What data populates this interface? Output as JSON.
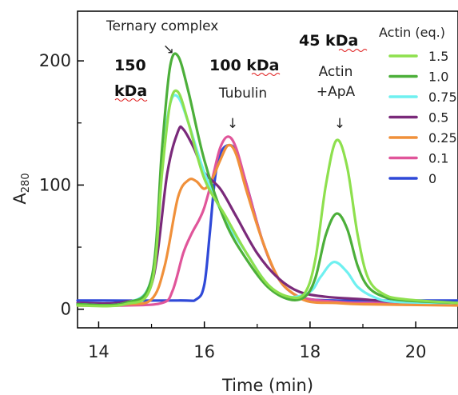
{
  "chart_data": {
    "type": "line",
    "xlabel": "Time (min)",
    "ylabel": "A",
    "ylabel_sub": "280",
    "xlim": [
      13.6,
      20.8
    ],
    "ylim": [
      -15,
      240
    ],
    "xticks": [
      14,
      16,
      18,
      20
    ],
    "yticks": [
      0,
      100,
      200
    ],
    "legend": {
      "title": "Actin (eq.)",
      "placement": "top-right"
    },
    "annotations": {
      "ternary": "Ternary complex",
      "mw150a": "150",
      "mw150b": "kDa",
      "mw100": "100 kDa",
      "tubulin": "Tubulin",
      "mw45": "45 kDa",
      "actin1": "Actin",
      "actin2": "+ApA",
      "arrow": "↓"
    },
    "series": [
      {
        "name": "1.5",
        "color": "#8ee04e",
        "x": [
          13.6,
          14.5,
          15.0,
          15.2,
          15.35,
          15.5,
          15.7,
          16.0,
          16.4,
          16.8,
          17.2,
          17.6,
          17.9,
          18.1,
          18.3,
          18.5,
          18.7,
          18.9,
          19.1,
          19.4,
          19.8,
          20.8
        ],
        "y": [
          3,
          4,
          20,
          110,
          165,
          175,
          150,
          105,
          75,
          45,
          20,
          10,
          13,
          40,
          100,
          136,
          115,
          60,
          25,
          12,
          8,
          5
        ]
      },
      {
        "name": "1.0",
        "color": "#4caf3a",
        "x": [
          13.6,
          14.5,
          15.0,
          15.2,
          15.35,
          15.5,
          15.7,
          16.0,
          16.4,
          16.8,
          17.2,
          17.6,
          17.9,
          18.1,
          18.3,
          18.5,
          18.7,
          18.9,
          19.1,
          19.4,
          19.8,
          20.8
        ],
        "y": [
          4,
          5,
          25,
          130,
          195,
          204,
          175,
          120,
          70,
          40,
          18,
          8,
          10,
          25,
          60,
          77,
          65,
          35,
          18,
          10,
          7,
          5
        ]
      },
      {
        "name": "0.75",
        "color": "#6ff0f0",
        "x": [
          13.6,
          14.5,
          15.0,
          15.2,
          15.35,
          15.5,
          15.7,
          16.0,
          16.4,
          16.8,
          17.2,
          17.6,
          18.0,
          18.2,
          18.45,
          18.7,
          18.9,
          19.2,
          19.6,
          20.8
        ],
        "y": [
          4,
          5,
          25,
          120,
          165,
          171,
          150,
          110,
          72,
          45,
          20,
          10,
          14,
          26,
          38,
          30,
          18,
          10,
          6,
          5
        ]
      },
      {
        "name": "0.5",
        "color": "#7a2a7a",
        "x": [
          13.6,
          14.5,
          15.0,
          15.3,
          15.5,
          15.6,
          15.8,
          16.0,
          16.3,
          16.6,
          17.0,
          17.4,
          17.8,
          18.3,
          19.0,
          19.6,
          20.8
        ],
        "y": [
          5,
          6,
          20,
          110,
          143,
          145,
          130,
          110,
          97,
          75,
          45,
          25,
          14,
          10,
          8,
          6,
          5
        ]
      },
      {
        "name": "0.25",
        "color": "#f0903a",
        "x": [
          13.6,
          14.5,
          15.0,
          15.25,
          15.5,
          15.7,
          15.85,
          16.0,
          16.15,
          16.3,
          16.45,
          16.6,
          16.8,
          17.1,
          17.4,
          17.7,
          18.0,
          18.5,
          19.0,
          20.8
        ],
        "y": [
          3,
          4,
          8,
          35,
          90,
          104,
          103,
          97,
          105,
          120,
          132,
          125,
          95,
          55,
          25,
          12,
          6,
          5,
          4,
          3
        ]
      },
      {
        "name": "0.1",
        "color": "#e0559a",
        "x": [
          13.6,
          14.5,
          15.2,
          15.4,
          15.6,
          15.75,
          15.9,
          16.0,
          16.15,
          16.3,
          16.45,
          16.6,
          16.8,
          17.1,
          17.4,
          17.7,
          18.0,
          18.5,
          19.0,
          20.8
        ],
        "y": [
          3,
          3,
          5,
          15,
          45,
          60,
          72,
          82,
          105,
          130,
          139,
          130,
          100,
          55,
          25,
          12,
          8,
          6,
          5,
          4
        ]
      },
      {
        "name": "0",
        "color": "#2f49d8",
        "x": [
          13.6,
          15.5,
          15.85,
          16.0,
          16.1,
          16.2,
          16.3,
          16.45,
          16.6,
          16.8,
          17.1,
          17.4,
          17.7,
          18.0,
          18.5,
          19.0,
          20.8
        ],
        "y": [
          7,
          7,
          8,
          20,
          60,
          105,
          125,
          132,
          127,
          100,
          55,
          25,
          12,
          8,
          7,
          7,
          7
        ]
      }
    ]
  }
}
